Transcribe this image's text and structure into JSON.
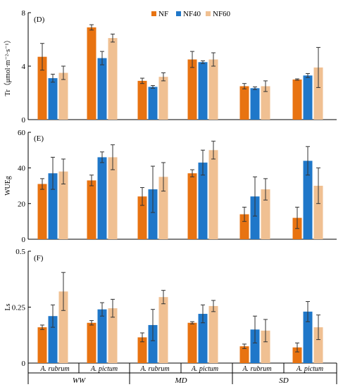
{
  "colors": {
    "NF": "#e87311",
    "NF40": "#1f77c9",
    "NF60": "#f0c092",
    "axis": "#000000",
    "error_bar": "#333333"
  },
  "legend": {
    "position": "top-center",
    "items": [
      "NF",
      "NF40",
      "NF60"
    ]
  },
  "groups": [
    {
      "species": "A. rubrum",
      "treatment": "WW"
    },
    {
      "species": "A. pictum",
      "treatment": ""
    },
    {
      "species": "A. rubrum",
      "treatment": "MD"
    },
    {
      "species": "A. pictum",
      "treatment": ""
    },
    {
      "species": "A. rubrum",
      "treatment": "SD"
    },
    {
      "species": "A. pictum",
      "treatment": ""
    }
  ],
  "chart_data": [
    {
      "type": "bar",
      "panel_label": "(D)",
      "ylabel": "Tr（μmol·m⁻²·s⁻¹）",
      "ylim": [
        0,
        8
      ],
      "yticks": [
        "0",
        "4",
        "8"
      ],
      "tick_values": [
        0,
        4,
        8
      ],
      "categories": [
        "A. rubrum (WW)",
        "A. pictum (WW)",
        "A. rubrum (MD)",
        "A. pictum (MD)",
        "A. rubrum (SD)",
        "A. pictum (SD)"
      ],
      "series": [
        {
          "name": "NF",
          "values": [
            4.7,
            6.9,
            2.9,
            4.5,
            2.5,
            3.0
          ],
          "errors": [
            1.0,
            0.2,
            0.2,
            0.6,
            0.2,
            0.05
          ]
        },
        {
          "name": "NF40",
          "values": [
            3.1,
            4.6,
            2.45,
            4.3,
            2.35,
            3.3
          ],
          "errors": [
            0.3,
            0.5,
            0.1,
            0.1,
            0.1,
            0.15
          ]
        },
        {
          "name": "NF60",
          "values": [
            3.5,
            6.1,
            3.2,
            4.5,
            2.5,
            3.9
          ],
          "errors": [
            0.5,
            0.3,
            0.3,
            0.5,
            0.4,
            1.5
          ]
        }
      ]
    },
    {
      "type": "bar",
      "panel_label": "(E)",
      "ylabel": "WUEg",
      "ylim": [
        0,
        60
      ],
      "yticks": [
        "0",
        "20",
        "40",
        "60"
      ],
      "tick_values": [
        0,
        20,
        40,
        60
      ],
      "categories": [
        "A. rubrum (WW)",
        "A. pictum (WW)",
        "A. rubrum (MD)",
        "A. pictum (MD)",
        "A. rubrum (SD)",
        "A. pictum (SD)"
      ],
      "series": [
        {
          "name": "NF",
          "values": [
            31,
            33,
            24,
            37,
            14,
            12
          ],
          "errors": [
            3,
            3,
            5,
            2,
            4,
            6
          ]
        },
        {
          "name": "NF40",
          "values": [
            37,
            46,
            28,
            43,
            24,
            44
          ],
          "errors": [
            9,
            3,
            13,
            7,
            11,
            8
          ]
        },
        {
          "name": "NF60",
          "values": [
            38,
            46,
            35,
            50,
            28,
            30
          ],
          "errors": [
            7,
            7,
            8,
            5,
            6,
            10
          ]
        }
      ]
    },
    {
      "type": "bar",
      "panel_label": "(F)",
      "ylabel": "Ls",
      "ylim": [
        0,
        0.5
      ],
      "yticks": [
        "0",
        "0.25",
        "0.5"
      ],
      "tick_values": [
        0,
        0.25,
        0.5
      ],
      "categories": [
        "A. rubrum (WW)",
        "A. pictum (WW)",
        "A. rubrum (MD)",
        "A. pictum (MD)",
        "A. rubrum (SD)",
        "A. pictum (SD)"
      ],
      "series": [
        {
          "name": "NF",
          "values": [
            0.16,
            0.18,
            0.115,
            0.18,
            0.075,
            0.07
          ],
          "errors": [
            0.01,
            0.01,
            0.02,
            0.005,
            0.01,
            0.02
          ]
        },
        {
          "name": "NF40",
          "values": [
            0.21,
            0.24,
            0.17,
            0.22,
            0.15,
            0.23
          ],
          "errors": [
            0.05,
            0.03,
            0.07,
            0.04,
            0.06,
            0.045
          ]
        },
        {
          "name": "NF60",
          "values": [
            0.32,
            0.245,
            0.295,
            0.255,
            0.145,
            0.16
          ],
          "errors": [
            0.085,
            0.04,
            0.03,
            0.025,
            0.05,
            0.055
          ]
        }
      ]
    }
  ]
}
